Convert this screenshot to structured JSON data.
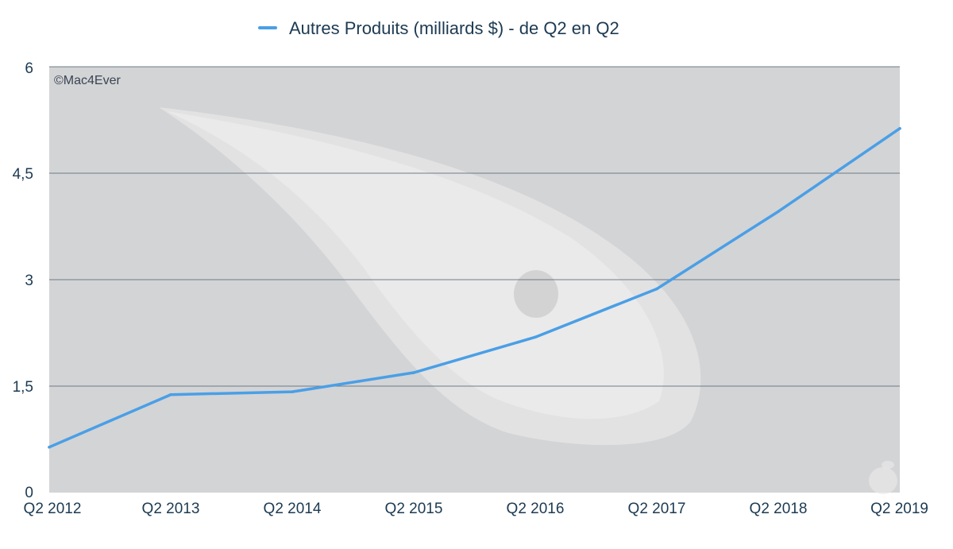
{
  "chart_data": {
    "type": "line",
    "x": [
      "Q2 2012",
      "Q2 2013",
      "Q2 2014",
      "Q2 2015",
      "Q2 2016",
      "Q2 2017",
      "Q2 2018",
      "Q2 2019"
    ],
    "series": [
      {
        "name": "Autres Produits (milliards $) - de Q2 en Q2",
        "values": [
          0.64,
          1.38,
          1.42,
          1.69,
          2.19,
          2.87,
          3.96,
          5.13
        ]
      }
    ],
    "ylim": [
      0,
      6
    ],
    "yticks": [
      "0",
      "1,5",
      "3",
      "4,5",
      "6"
    ],
    "ytick_values": [
      0,
      1.5,
      3,
      4.5,
      6
    ],
    "grid": true,
    "legend_position": "top",
    "watermark": "©Mac4Ever"
  },
  "colors": {
    "line": "#4a9fe6",
    "plot_background": "#d3d4d6",
    "gridline": "#5a6a78",
    "axis_text": "#1c3a52",
    "legend_text": "#1c3a52",
    "watermark_text": "#3a4452"
  }
}
